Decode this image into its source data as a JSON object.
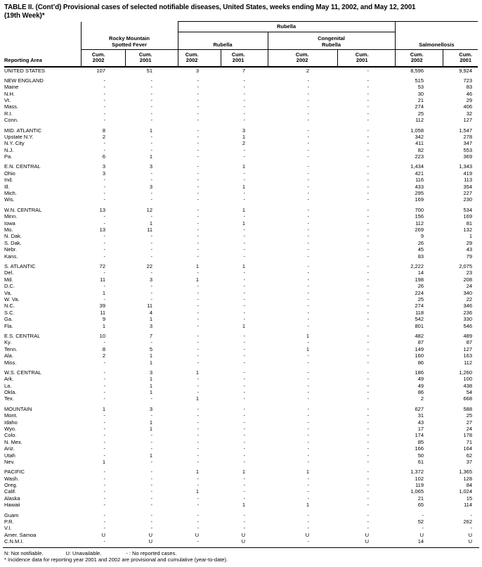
{
  "title": {
    "line1": "TABLE II. (Cont’d) Provisional cases of selected notifiable diseases, United States, weeks ending May 11, 2002, and May 12, 2001",
    "line2": "(19th Week)*"
  },
  "table": {
    "reporting_area_label": "Reporting Area",
    "super_group_label": "Rubella",
    "groups": [
      {
        "line1": "Rocky Mountain",
        "line2": "Spotted Fever"
      },
      {
        "line1": "Rubella"
      },
      {
        "line1": "Congenital",
        "line2": "Rubella"
      },
      {
        "line1": "Salmonellosis"
      }
    ],
    "cum_label": "Cum.",
    "year_labels": [
      "2002",
      "2001",
      "2002",
      "2001",
      "2002",
      "2001",
      "2002",
      "2001"
    ],
    "sections": [
      {
        "rows": [
          {
            "area": "UNITED STATES",
            "values": [
              "107",
              "51",
              "3",
              "7",
              "2",
              "-",
              "8,596",
              "9,924"
            ]
          }
        ]
      },
      {
        "rows": [
          {
            "area": "NEW ENGLAND",
            "values": [
              "-",
              "-",
              "-",
              "-",
              "-",
              "-",
              "515",
              "723"
            ]
          },
          {
            "area": "Maine",
            "values": [
              "-",
              "-",
              "-",
              "-",
              "-",
              "-",
              "53",
              "83"
            ]
          },
          {
            "area": "N.H.",
            "values": [
              "-",
              "-",
              "-",
              "-",
              "-",
              "-",
              "30",
              "46"
            ]
          },
          {
            "area": "Vt.",
            "values": [
              "-",
              "-",
              "-",
              "-",
              "-",
              "-",
              "21",
              "29"
            ]
          },
          {
            "area": "Mass.",
            "values": [
              "-",
              "-",
              "-",
              "-",
              "-",
              "-",
              "274",
              "406"
            ]
          },
          {
            "area": "R.I.",
            "values": [
              "-",
              "-",
              "-",
              "-",
              "-",
              "-",
              "25",
              "32"
            ]
          },
          {
            "area": "Conn.",
            "values": [
              "-",
              "-",
              "-",
              "-",
              "-",
              "-",
              "112",
              "127"
            ]
          }
        ]
      },
      {
        "rows": [
          {
            "area": "MID. ATLANTIC",
            "values": [
              "8",
              "1",
              "-",
              "3",
              "-",
              "-",
              "1,058",
              "1,547"
            ]
          },
          {
            "area": "Upstate N.Y.",
            "values": [
              "2",
              "-",
              "-",
              "1",
              "-",
              "-",
              "342",
              "278"
            ]
          },
          {
            "area": "N.Y. City",
            "values": [
              "-",
              "-",
              "-",
              "2",
              "-",
              "-",
              "411",
              "347"
            ]
          },
          {
            "area": "N.J.",
            "values": [
              "-",
              "-",
              "-",
              "-",
              "-",
              "-",
              "82",
              "553"
            ]
          },
          {
            "area": "Pa.",
            "values": [
              "6",
              "1",
              "-",
              "-",
              "-",
              "-",
              "223",
              "369"
            ]
          }
        ]
      },
      {
        "rows": [
          {
            "area": "E.N. CENTRAL",
            "values": [
              "3",
              "3",
              "-",
              "1",
              "-",
              "-",
              "1,434",
              "1,343"
            ]
          },
          {
            "area": "Ohio",
            "values": [
              "3",
              "-",
              "-",
              "-",
              "-",
              "-",
              "421",
              "419"
            ]
          },
          {
            "area": "Ind.",
            "values": [
              "-",
              "-",
              "-",
              "-",
              "-",
              "-",
              "116",
              "113"
            ]
          },
          {
            "area": "Ill.",
            "values": [
              "-",
              "3",
              "-",
              "1",
              "-",
              "-",
              "433",
              "354"
            ]
          },
          {
            "area": "Mich.",
            "values": [
              "-",
              "-",
              "-",
              "-",
              "-",
              "-",
              "295",
              "227"
            ]
          },
          {
            "area": "Wis.",
            "values": [
              "-",
              "-",
              "-",
              "-",
              "-",
              "-",
              "169",
              "230"
            ]
          }
        ]
      },
      {
        "rows": [
          {
            "area": "W.N. CENTRAL",
            "values": [
              "13",
              "12",
              "-",
              "1",
              "-",
              "-",
              "700",
              "534"
            ]
          },
          {
            "area": "Minn.",
            "values": [
              "-",
              "-",
              "-",
              "-",
              "-",
              "-",
              "156",
              "169"
            ]
          },
          {
            "area": "Iowa",
            "values": [
              "-",
              "1",
              "-",
              "1",
              "-",
              "-",
              "112",
              "81"
            ]
          },
          {
            "area": "Mo.",
            "values": [
              "13",
              "11",
              "-",
              "-",
              "-",
              "-",
              "269",
              "132"
            ]
          },
          {
            "area": "N. Dak.",
            "values": [
              "-",
              "-",
              "-",
              "-",
              "-",
              "-",
              "9",
              "1"
            ]
          },
          {
            "area": "S. Dak.",
            "values": [
              "-",
              "-",
              "-",
              "-",
              "-",
              "-",
              "26",
              "29"
            ]
          },
          {
            "area": "Nebr.",
            "values": [
              "-",
              "-",
              "-",
              "-",
              "-",
              "-",
              "45",
              "43"
            ]
          },
          {
            "area": "Kans.",
            "values": [
              "-",
              "-",
              "-",
              "-",
              "-",
              "-",
              "83",
              "79"
            ]
          }
        ]
      },
      {
        "rows": [
          {
            "area": "S. ATLANTIC",
            "values": [
              "72",
              "22",
              "1",
              "1",
              "-",
              "-",
              "2,222",
              "2,075"
            ]
          },
          {
            "area": "Del.",
            "values": [
              "-",
              "-",
              "-",
              "-",
              "-",
              "-",
              "14",
              "23"
            ]
          },
          {
            "area": "Md.",
            "values": [
              "11",
              "3",
              "1",
              "-",
              "-",
              "-",
              "198",
              "208"
            ]
          },
          {
            "area": "D.C.",
            "values": [
              "-",
              "-",
              "-",
              "-",
              "-",
              "-",
              "26",
              "24"
            ]
          },
          {
            "area": "Va.",
            "values": [
              "1",
              "-",
              "-",
              "-",
              "-",
              "-",
              "224",
              "340"
            ]
          },
          {
            "area": "W. Va.",
            "values": [
              "-",
              "-",
              "-",
              "-",
              "-",
              "-",
              "25",
              "22"
            ]
          },
          {
            "area": "N.C.",
            "values": [
              "39",
              "11",
              "-",
              "-",
              "-",
              "-",
              "274",
              "346"
            ]
          },
          {
            "area": "S.C.",
            "values": [
              "11",
              "4",
              "-",
              "-",
              "-",
              "-",
              "118",
              "236"
            ]
          },
          {
            "area": "Ga.",
            "values": [
              "9",
              "1",
              "-",
              "-",
              "-",
              "-",
              "542",
              "330"
            ]
          },
          {
            "area": "Fla.",
            "values": [
              "1",
              "3",
              "-",
              "1",
              "-",
              "-",
              "801",
              "546"
            ]
          }
        ]
      },
      {
        "rows": [
          {
            "area": "E.S. CENTRAL",
            "values": [
              "10",
              "7",
              "-",
              "-",
              "1",
              "-",
              "482",
              "489"
            ]
          },
          {
            "area": "Ky.",
            "values": [
              "-",
              "-",
              "-",
              "-",
              "-",
              "-",
              "87",
              "87"
            ]
          },
          {
            "area": "Tenn.",
            "values": [
              "8",
              "5",
              "-",
              "-",
              "1",
              "-",
              "149",
              "127"
            ]
          },
          {
            "area": "Ala.",
            "values": [
              "2",
              "1",
              "-",
              "-",
              "-",
              "-",
              "160",
              "163"
            ]
          },
          {
            "area": "Miss.",
            "values": [
              "-",
              "1",
              "-",
              "-",
              "-",
              "-",
              "86",
              "112"
            ]
          }
        ]
      },
      {
        "rows": [
          {
            "area": "W.S. CENTRAL",
            "values": [
              "-",
              "3",
              "1",
              "-",
              "-",
              "-",
              "186",
              "1,260"
            ]
          },
          {
            "area": "Ark.",
            "values": [
              "-",
              "1",
              "-",
              "-",
              "-",
              "-",
              "49",
              "100"
            ]
          },
          {
            "area": "La.",
            "values": [
              "-",
              "1",
              "-",
              "-",
              "-",
              "-",
              "49",
              "438"
            ]
          },
          {
            "area": "Okla.",
            "values": [
              "-",
              "1",
              "-",
              "-",
              "-",
              "-",
              "86",
              "54"
            ]
          },
          {
            "area": "Tex.",
            "values": [
              "-",
              "-",
              "1",
              "-",
              "-",
              "-",
              "2",
              "668"
            ]
          }
        ]
      },
      {
        "rows": [
          {
            "area": "MOUNTAIN",
            "values": [
              "1",
              "3",
              "-",
              "-",
              "-",
              "-",
              "627",
              "588"
            ]
          },
          {
            "area": "Mont.",
            "values": [
              "-",
              "-",
              "-",
              "-",
              "-",
              "-",
              "31",
              "25"
            ]
          },
          {
            "area": "Idaho",
            "values": [
              "-",
              "1",
              "-",
              "-",
              "-",
              "-",
              "43",
              "27"
            ]
          },
          {
            "area": "Wyo.",
            "values": [
              "-",
              "1",
              "-",
              "-",
              "-",
              "-",
              "17",
              "24"
            ]
          },
          {
            "area": "Colo.",
            "values": [
              "-",
              "-",
              "-",
              "-",
              "-",
              "-",
              "174",
              "178"
            ]
          },
          {
            "area": "N. Mex.",
            "values": [
              "-",
              "-",
              "-",
              "-",
              "-",
              "-",
              "85",
              "71"
            ]
          },
          {
            "area": "Ariz.",
            "values": [
              "-",
              "-",
              "-",
              "-",
              "-",
              "-",
              "166",
              "164"
            ]
          },
          {
            "area": "Utah",
            "values": [
              "-",
              "1",
              "-",
              "-",
              "-",
              "-",
              "50",
              "62"
            ]
          },
          {
            "area": "Nev.",
            "values": [
              "1",
              "-",
              "-",
              "-",
              "-",
              "-",
              "61",
              "37"
            ]
          }
        ]
      },
      {
        "rows": [
          {
            "area": "PACIFIC",
            "values": [
              "-",
              "-",
              "1",
              "1",
              "1",
              "-",
              "1,372",
              "1,365"
            ]
          },
          {
            "area": "Wash.",
            "values": [
              "-",
              "-",
              "-",
              "-",
              "-",
              "-",
              "102",
              "128"
            ]
          },
          {
            "area": "Oreg.",
            "values": [
              "-",
              "-",
              "-",
              "-",
              "-",
              "-",
              "119",
              "84"
            ]
          },
          {
            "area": "Calif.",
            "values": [
              "-",
              "-",
              "1",
              "-",
              "-",
              "-",
              "1,065",
              "1,024"
            ]
          },
          {
            "area": "Alaska",
            "values": [
              "-",
              "-",
              "-",
              "-",
              "-",
              "-",
              "21",
              "15"
            ]
          },
          {
            "area": "Hawaii",
            "values": [
              "-",
              "-",
              "-",
              "1",
              "1",
              "-",
              "65",
              "114"
            ]
          }
        ]
      },
      {
        "rows": [
          {
            "area": "Guam",
            "values": [
              "-",
              "-",
              "-",
              "-",
              "-",
              "-",
              "-",
              "-"
            ]
          },
          {
            "area": "P.R.",
            "values": [
              "-",
              "-",
              "-",
              "-",
              "-",
              "-",
              "52",
              "262"
            ]
          },
          {
            "area": "V.I.",
            "values": [
              "-",
              "-",
              "-",
              "-",
              "-",
              "-",
              "-",
              "-"
            ]
          },
          {
            "area": "Amer. Samoa",
            "values": [
              "U",
              "U",
              "U",
              "U",
              "U",
              "U",
              "U",
              "U"
            ]
          },
          {
            "area": "C.N.M.I.",
            "values": [
              "-",
              "U",
              "-",
              "U",
              "-",
              "U",
              "14",
              "U"
            ]
          }
        ]
      }
    ]
  },
  "footnotes": {
    "part1": "N: Not notifiable.",
    "part2": "U: Unavailable.",
    "part3": "- : No reported cases.",
    "line2": "* Incidence data for reporting year 2001 and 2002 are provisional and cumulative (year-to-date)."
  }
}
